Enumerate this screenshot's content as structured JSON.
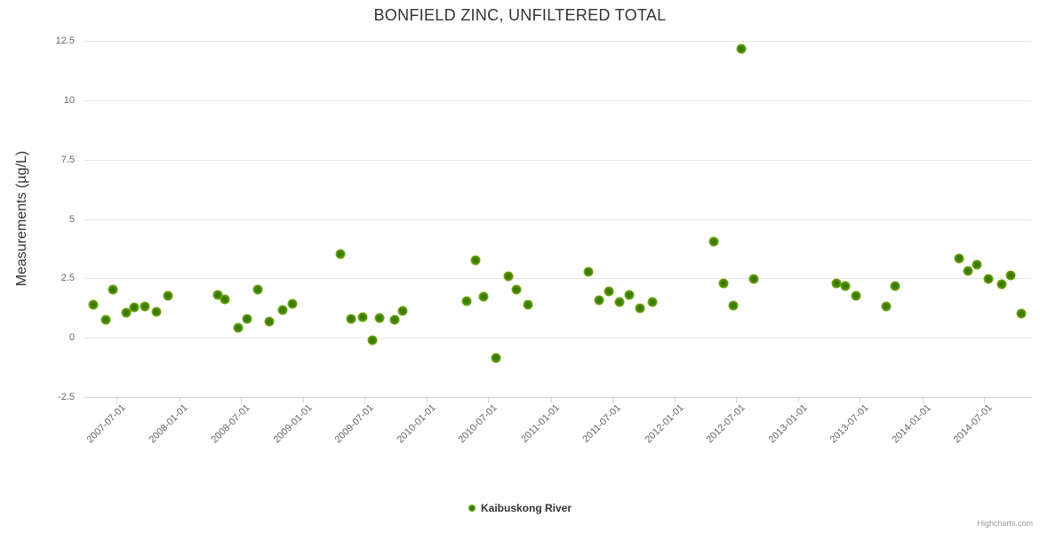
{
  "chart": {
    "title": "BONFIELD ZINC, UNFILTERED TOTAL",
    "credit": "Highcharts.com"
  },
  "colors": {
    "background": "#ffffff",
    "grid": "#e6e6e6",
    "axis_line": "#ccd6eb",
    "tick_label": "#666666",
    "title": "#333333",
    "legend_text": "#333333",
    "credit": "#999999",
    "marker_core": "#3a7a00",
    "marker_edge": "#8cc63f"
  },
  "chart_data": {
    "type": "scatter",
    "title": "BONFIELD ZINC, UNFILTERED TOTAL",
    "xlabel": "",
    "ylabel": "Measurements (µg/L)",
    "ylim": [
      -2.5,
      12.5
    ],
    "ytick_labels": [
      "12.5",
      "10",
      "7.5",
      "5",
      "2.5",
      "0",
      "-2.5"
    ],
    "yticks": [
      12.5,
      10,
      7.5,
      5,
      2.5,
      0,
      -2.5
    ],
    "xlim": [
      "2007-03-25",
      "2014-11-18"
    ],
    "xticks": [
      "2007-07-01",
      "2008-01-01",
      "2008-07-01",
      "2009-01-01",
      "2009-07-01",
      "2010-01-01",
      "2010-07-01",
      "2011-01-01",
      "2011-07-01",
      "2012-01-01",
      "2012-07-01",
      "2013-01-01",
      "2013-07-01",
      "2014-01-01",
      "2014-07-01"
    ],
    "grid": true,
    "legend_position": "bottom",
    "series": [
      {
        "name": "Kaibuskong River",
        "color": "#7db300",
        "points": [
          [
            "2007-04-24",
            1.4
          ],
          [
            "2007-05-30",
            0.75
          ],
          [
            "2007-06-20",
            2.03
          ],
          [
            "2007-07-29",
            1.06
          ],
          [
            "2007-08-22",
            1.27
          ],
          [
            "2007-09-23",
            1.3
          ],
          [
            "2007-10-25",
            1.1
          ],
          [
            "2007-11-28",
            1.75
          ],
          [
            "2008-04-25",
            1.81
          ],
          [
            "2008-05-16",
            1.6
          ],
          [
            "2008-06-22",
            0.4
          ],
          [
            "2008-07-20",
            0.81
          ],
          [
            "2008-08-21",
            2.03
          ],
          [
            "2008-09-22",
            0.69
          ],
          [
            "2008-11-01",
            1.15
          ],
          [
            "2008-11-30",
            1.43
          ],
          [
            "2009-04-22",
            3.53
          ],
          [
            "2009-05-22",
            0.79
          ],
          [
            "2009-06-25",
            0.86
          ],
          [
            "2009-07-25",
            -0.12
          ],
          [
            "2009-08-15",
            0.82
          ],
          [
            "2009-09-27",
            0.75
          ],
          [
            "2009-10-22",
            1.11
          ],
          [
            "2010-04-28",
            1.54
          ],
          [
            "2010-05-25",
            3.25
          ],
          [
            "2010-06-16",
            1.73
          ],
          [
            "2010-07-24",
            -0.85
          ],
          [
            "2010-08-28",
            2.6
          ],
          [
            "2010-09-22",
            2.02
          ],
          [
            "2010-10-25",
            1.39
          ],
          [
            "2011-04-22",
            2.78
          ],
          [
            "2011-05-25",
            1.56
          ],
          [
            "2011-06-22",
            1.97
          ],
          [
            "2011-07-22",
            1.49
          ],
          [
            "2011-08-21",
            1.8
          ],
          [
            "2011-09-22",
            1.24
          ],
          [
            "2011-10-28",
            1.51
          ],
          [
            "2012-04-25",
            4.03
          ],
          [
            "2012-05-25",
            2.28
          ],
          [
            "2012-06-22",
            1.36
          ],
          [
            "2012-07-16",
            12.15
          ],
          [
            "2012-08-23",
            2.48
          ],
          [
            "2013-04-22",
            2.27
          ],
          [
            "2013-05-19",
            2.18
          ],
          [
            "2013-06-19",
            1.77
          ],
          [
            "2013-09-17",
            1.3
          ],
          [
            "2013-10-13",
            2.16
          ],
          [
            "2014-04-19",
            3.32
          ],
          [
            "2014-05-16",
            2.83
          ],
          [
            "2014-06-11",
            3.08
          ],
          [
            "2014-07-16",
            2.46
          ],
          [
            "2014-08-24",
            2.26
          ],
          [
            "2014-09-18",
            2.62
          ],
          [
            "2014-10-19",
            1.0
          ]
        ]
      }
    ]
  }
}
